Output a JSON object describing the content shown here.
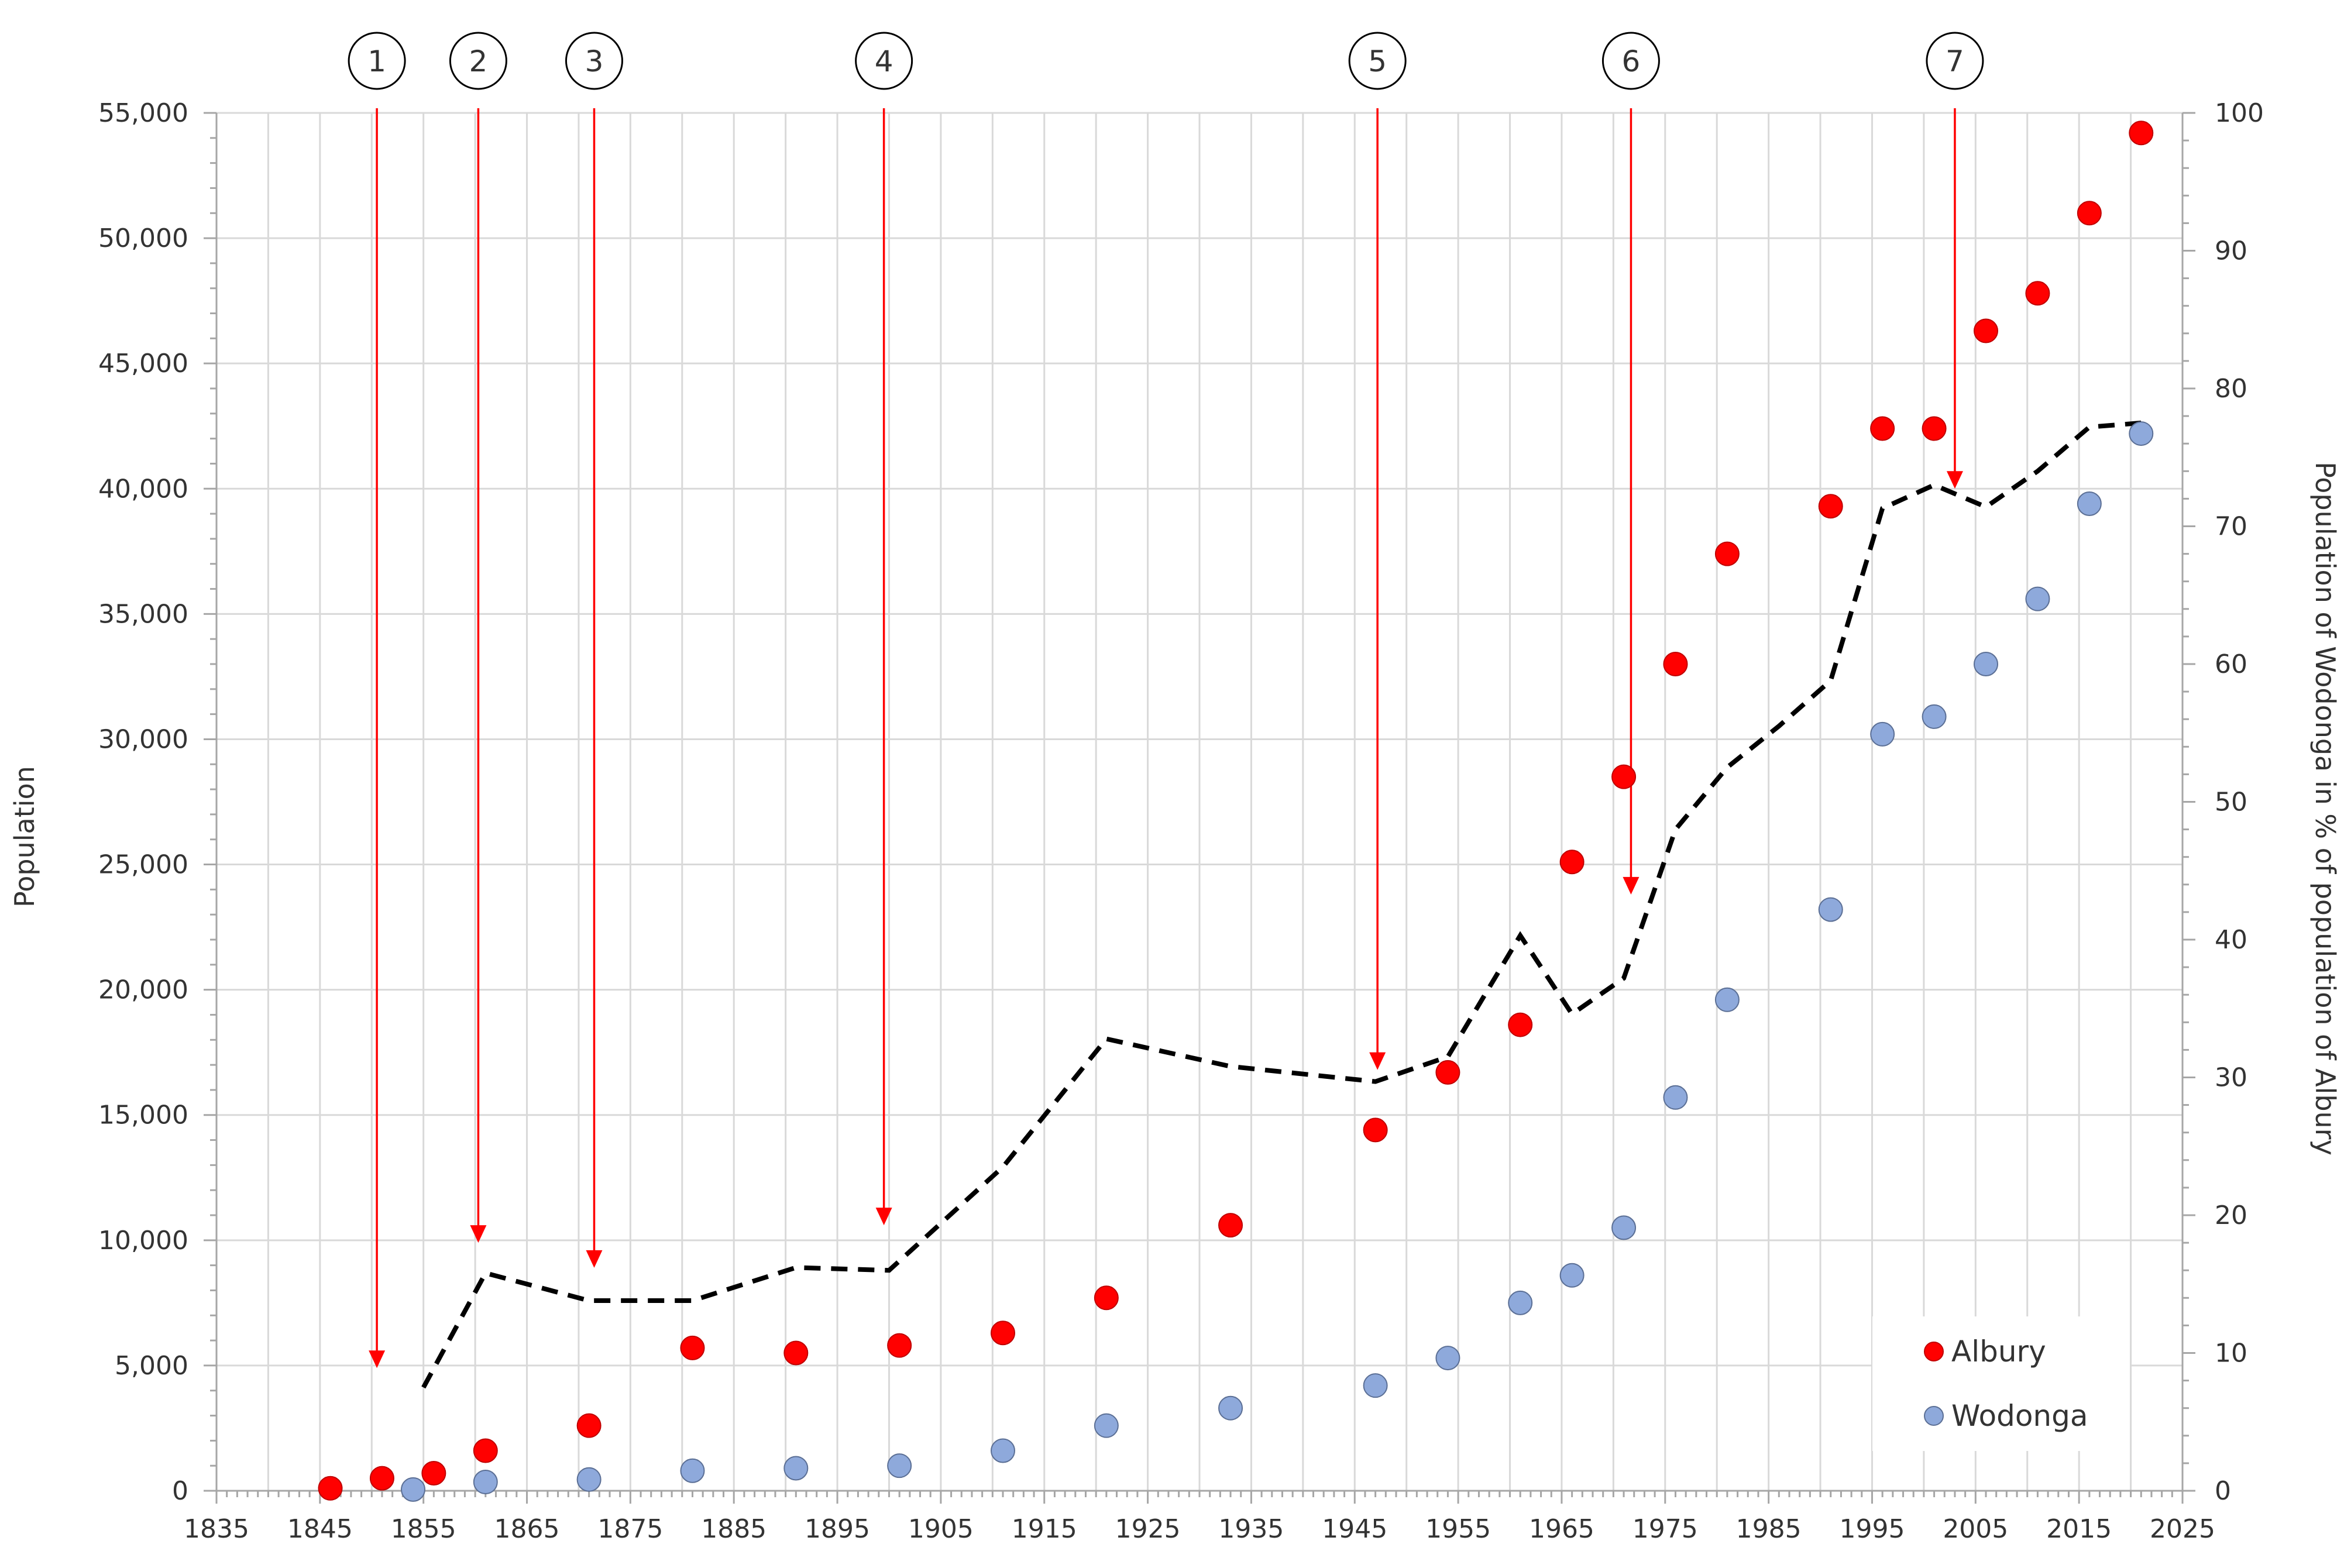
{
  "chart_data": {
    "type": "scatter",
    "title": "",
    "xlabel": "",
    "ylabel": "Population",
    "y2label": "Population of Wodonga in % of population of Albury",
    "xlim": [
      1835,
      2025
    ],
    "ylim": [
      0,
      55000
    ],
    "y2lim": [
      0,
      100
    ],
    "x_ticks": [
      1835,
      1845,
      1855,
      1865,
      1875,
      1885,
      1895,
      1905,
      1915,
      1925,
      1935,
      1945,
      1955,
      1965,
      1975,
      1985,
      1995,
      2005,
      2015,
      2025
    ],
    "y_ticks": [
      0,
      5000,
      10000,
      15000,
      20000,
      25000,
      30000,
      35000,
      40000,
      45000,
      50000,
      55000
    ],
    "y_tick_labels": [
      "0",
      "5,000",
      "10,000",
      "15,000",
      "20,000",
      "25,000",
      "30,000",
      "35,000",
      "40,000",
      "45,000",
      "50,000",
      "55,000"
    ],
    "y2_ticks": [
      0,
      10,
      20,
      30,
      40,
      50,
      60,
      70,
      80,
      90,
      100
    ],
    "grid": true,
    "legend_position": "bottom-right",
    "series": [
      {
        "name": "Albury",
        "color": "#ff0000",
        "axis": "left",
        "kind": "scatter",
        "x": [
          1846,
          1851,
          1856,
          1861,
          1871,
          1881,
          1891,
          1901,
          1911,
          1921,
          1933,
          1947,
          1954,
          1961,
          1966,
          1971,
          1976,
          1981,
          1991,
          1996,
          2001,
          2006,
          2011,
          2016,
          2021
        ],
        "y": [
          100,
          500,
          700,
          1600,
          2600,
          5700,
          5500,
          5800,
          6300,
          7700,
          10600,
          14400,
          16700,
          18600,
          25100,
          28500,
          33000,
          37400,
          39300,
          42400,
          42400,
          46300,
          47800,
          51000,
          54200
        ]
      },
      {
        "name": "Wodonga",
        "color": "#8ea9db",
        "axis": "left",
        "kind": "scatter",
        "x": [
          1854,
          1861,
          1871,
          1881,
          1891,
          1901,
          1911,
          1921,
          1933,
          1947,
          1954,
          1961,
          1966,
          1971,
          1976,
          1981,
          1991,
          1996,
          2001,
          2006,
          2011,
          2016,
          2021
        ],
        "y": [
          50,
          350,
          450,
          800,
          900,
          1000,
          1600,
          2600,
          3300,
          4200,
          5300,
          7500,
          8600,
          10500,
          15700,
          19600,
          23200,
          30200,
          30900,
          33000,
          35600,
          39400,
          42200
        ]
      },
      {
        "name": "",
        "color": "#000000",
        "axis": "right",
        "kind": "dashed-line",
        "x": [
          1855,
          1861,
          1871,
          1881,
          1891,
          1900,
          1911,
          1921,
          1933,
          1947,
          1954,
          1961,
          1966,
          1971,
          1976,
          1981,
          1986,
          1991,
          1996,
          2001,
          2006,
          2011,
          2016,
          2021
        ],
        "y": [
          7.5,
          15.8,
          13.8,
          13.8,
          16.2,
          16.0,
          23.5,
          32.8,
          30.8,
          29.7,
          31.5,
          40.3,
          34.6,
          37.2,
          48.0,
          52.5,
          55.5,
          58.8,
          71.3,
          73.0,
          71.4,
          74.0,
          77.2,
          77.5
        ]
      }
    ],
    "annotations": [
      {
        "label": "1",
        "x": 1850.5,
        "y_end": 4900
      },
      {
        "label": "2",
        "x": 1860.3,
        "y_end": 9900
      },
      {
        "label": "3",
        "x": 1871.5,
        "y_end": 8900
      },
      {
        "label": "4",
        "x": 1899.5,
        "y_end": 10600
      },
      {
        "label": "5",
        "x": 1947.2,
        "y_end": 16800
      },
      {
        "label": "6",
        "x": 1971.7,
        "y_end": 23800
      },
      {
        "label": "7",
        "x": 2003,
        "y_end": 40000
      }
    ],
    "legend": [
      {
        "name": "Albury",
        "color": "#ff0000"
      },
      {
        "name": "Wodonga",
        "color": "#8ea9db"
      }
    ]
  }
}
